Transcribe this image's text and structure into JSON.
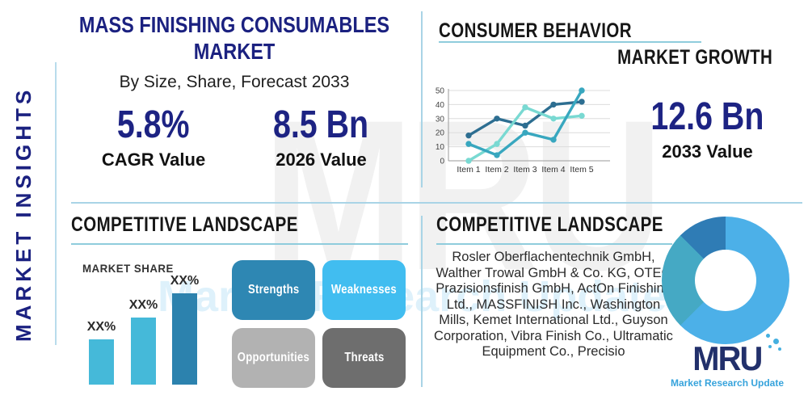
{
  "sidebar": {
    "label": "MARKET INSIGHTS"
  },
  "watermark": {
    "big_text": "MRU",
    "sub_text": "Market Research Update"
  },
  "header": {
    "title": "MASS FINISHING CONSUMABLES MARKET",
    "subtitle": "By Size, Share, Forecast 2033"
  },
  "stats": {
    "cagr": {
      "value": "5.8%",
      "label": "CAGR Value"
    },
    "y2026": {
      "value": "8.5 Bn",
      "label": "2026 Value"
    },
    "y2033": {
      "value": "12.6 Bn",
      "label": "2033 Value"
    }
  },
  "sections": {
    "consumer_behavior": {
      "title": "CONSUMER BEHAVIOR"
    },
    "market_growth": {
      "title": "MARKET GROWTH"
    },
    "competitive_left": {
      "title": "COMPETITIVE LANDSCAPE"
    },
    "market_share": {
      "title": "MARKET SHARE"
    },
    "competitive_right": {
      "title": "COMPETITIVE LANDSCAPE"
    }
  },
  "swot": [
    {
      "label": "Strengths",
      "color": "#2e87b3"
    },
    {
      "label": "Weaknesses",
      "color": "#41bdf0"
    },
    {
      "label": "Opportunities",
      "color": "#b2b2b2"
    },
    {
      "label": "Threats",
      "color": "#6e6e6e"
    }
  ],
  "companies": "Rosler Oberflachentechnik GmbH, Walther Trowal GmbH & Co. KG, OTEC Prazisionsfinish GmbH, ActOn Finishing Ltd., MASSFINISH Inc., Washington Mills, Kemet International Ltd., Guyson Corporation, Vibra Finish Co., Ultramatic Equipment Co., Precisio",
  "logo": {
    "text": "MRU",
    "tagline": "Market Research Update",
    "navy": "#22306b",
    "blue": "#36a3dc"
  },
  "colors": {
    "navy": "#1b2180",
    "divider": "#a9d4e6",
    "underline": "#8fccdc"
  },
  "chart_data": [
    {
      "id": "market-growth-line",
      "type": "line",
      "x": [
        "Item 1",
        "Item 2",
        "Item 3",
        "Item 4",
        "Item 5"
      ],
      "series": [
        {
          "name": "dark-blue",
          "color": "#2d6e91",
          "values": [
            18,
            30,
            25,
            40,
            42
          ]
        },
        {
          "name": "light-cyan",
          "color": "#79d9d2",
          "values": [
            0,
            12,
            38,
            30,
            32
          ]
        },
        {
          "name": "teal",
          "color": "#38a7bf",
          "values": [
            12,
            4,
            20,
            15,
            50
          ]
        }
      ],
      "ylim": [
        0,
        50
      ],
      "yticks": [
        0,
        10,
        20,
        30,
        40,
        50
      ],
      "grid": true,
      "legend": false
    },
    {
      "id": "market-share-bars",
      "type": "bar",
      "title": "MARKET SHARE",
      "categories": [
        "",
        "",
        ""
      ],
      "labels": [
        "XX%",
        "XX%",
        "XX%"
      ],
      "relative_heights": [
        0.4,
        0.59,
        0.8
      ],
      "colors": [
        "#45b9d9",
        "#45b9d9",
        "#2c82ae"
      ]
    },
    {
      "id": "company-share-donut",
      "type": "pie",
      "donut": true,
      "slices": [
        {
          "value": 62.5,
          "color": "#4cb0e8"
        },
        {
          "value": 25,
          "color": "#45a9c4"
        },
        {
          "value": 12.5,
          "color": "#2f7cb5"
        }
      ]
    }
  ]
}
